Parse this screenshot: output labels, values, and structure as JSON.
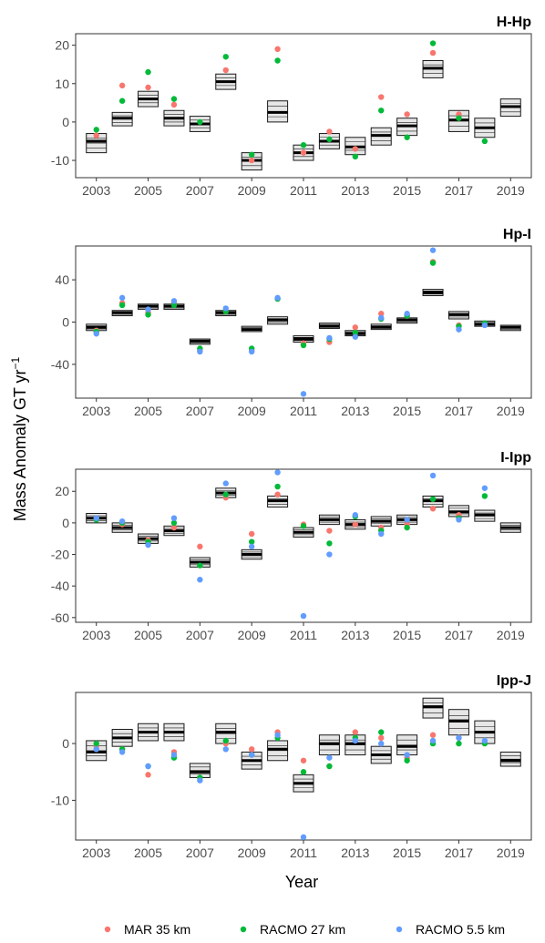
{
  "figure": {
    "ylabel_main": "Mass Anomaly GT yr",
    "ylabel_sup": "−1",
    "xlabel": "Year"
  },
  "colors": {
    "MAR 35 km": "#F8766D",
    "RACMO 27 km": "#00BA38",
    "RACMO 5.5 km": "#619CFF",
    "box_fill": "#e6e6e6",
    "box_stroke": "#1a1a1a"
  },
  "legend": {
    "placement": "bottom",
    "entries": [
      "MAR 35 km",
      "RACMO 27 km",
      "RACMO 5.5 km"
    ]
  },
  "chart_data": [
    {
      "type": "scatter",
      "title": "H-Hp",
      "xlim": [
        2002.2,
        2019.8
      ],
      "ylim": [
        -14.5,
        23
      ],
      "yticks": [
        -10,
        0,
        10,
        20
      ],
      "xticks": [
        2003,
        2005,
        2007,
        2009,
        2011,
        2013,
        2015,
        2017,
        2019
      ],
      "boxes": [
        {
          "x": 2003,
          "lo": -8,
          "hi": -3,
          "mid": -5
        },
        {
          "x": 2004,
          "lo": -1,
          "hi": 2.5,
          "mid": 1
        },
        {
          "x": 2005,
          "lo": 4,
          "hi": 8,
          "mid": 6
        },
        {
          "x": 2006,
          "lo": -1,
          "hi": 3,
          "mid": 1
        },
        {
          "x": 2007,
          "lo": -2.5,
          "hi": 1.5,
          "mid": -0.5
        },
        {
          "x": 2008,
          "lo": 8.5,
          "hi": 12.5,
          "mid": 10.5
        },
        {
          "x": 2009,
          "lo": -12.5,
          "hi": -8,
          "mid": -10
        },
        {
          "x": 2010,
          "lo": 0,
          "hi": 5.5,
          "mid": 2.5
        },
        {
          "x": 2011,
          "lo": -10,
          "hi": -6,
          "mid": -8
        },
        {
          "x": 2012,
          "lo": -7,
          "hi": -3,
          "mid": -5
        },
        {
          "x": 2013,
          "lo": -8.5,
          "hi": -4,
          "mid": -6.5
        },
        {
          "x": 2014,
          "lo": -6,
          "hi": -1.5,
          "mid": -3.5
        },
        {
          "x": 2015,
          "lo": -3.5,
          "hi": 1,
          "mid": -1
        },
        {
          "x": 2016,
          "lo": 11.5,
          "hi": 16,
          "mid": 14
        },
        {
          "x": 2017,
          "lo": -2.5,
          "hi": 3,
          "mid": 0.5
        },
        {
          "x": 2018,
          "lo": -4,
          "hi": 1,
          "mid": -1.5
        },
        {
          "x": 2019,
          "lo": 1.5,
          "hi": 6,
          "mid": 4
        }
      ],
      "series": [
        {
          "name": "MAR 35 km",
          "x": [
            2003,
            2004,
            2005,
            2006,
            2008,
            2009,
            2010,
            2011,
            2012,
            2013,
            2014,
            2015,
            2016,
            2017
          ],
          "y": [
            -3.5,
            9.5,
            9,
            4.5,
            13.5,
            -10,
            19,
            -8,
            -2.5,
            -7,
            6.5,
            2,
            18,
            2
          ]
        },
        {
          "name": "RACMO 27 km",
          "x": [
            2003,
            2004,
            2005,
            2006,
            2007,
            2008,
            2009,
            2010,
            2011,
            2012,
            2013,
            2014,
            2015,
            2016,
            2017,
            2018
          ],
          "y": [
            -2,
            5.5,
            13,
            6,
            0,
            17,
            -8.5,
            16,
            -6,
            -4.5,
            -9,
            3,
            -4,
            20.5,
            1,
            -5
          ]
        }
      ]
    },
    {
      "type": "scatter",
      "title": "Hp-I",
      "xlim": [
        2002.2,
        2019.8
      ],
      "ylim": [
        -72,
        72
      ],
      "yticks": [
        -40,
        0,
        40
      ],
      "xticks": [
        2003,
        2005,
        2007,
        2009,
        2011,
        2013,
        2015,
        2017,
        2019
      ],
      "boxes": [
        {
          "x": 2003,
          "lo": -8,
          "hi": -2,
          "mid": -5
        },
        {
          "x": 2004,
          "lo": 6,
          "hi": 11,
          "mid": 9
        },
        {
          "x": 2005,
          "lo": 12,
          "hi": 17,
          "mid": 15
        },
        {
          "x": 2006,
          "lo": 12,
          "hi": 17,
          "mid": 15
        },
        {
          "x": 2007,
          "lo": -21,
          "hi": -16,
          "mid": -18
        },
        {
          "x": 2008,
          "lo": 6,
          "hi": 11,
          "mid": 9
        },
        {
          "x": 2009,
          "lo": -9,
          "hi": -4,
          "mid": -7
        },
        {
          "x": 2010,
          "lo": -2,
          "hi": 5,
          "mid": 2
        },
        {
          "x": 2011,
          "lo": -19,
          "hi": -13,
          "mid": -16
        },
        {
          "x": 2012,
          "lo": -6,
          "hi": -1,
          "mid": -4
        },
        {
          "x": 2013,
          "lo": -13,
          "hi": -8,
          "mid": -11
        },
        {
          "x": 2014,
          "lo": -7,
          "hi": -2,
          "mid": -5
        },
        {
          "x": 2015,
          "lo": -1,
          "hi": 4,
          "mid": 2
        },
        {
          "x": 2016,
          "lo": 25,
          "hi": 31,
          "mid": 28
        },
        {
          "x": 2017,
          "lo": 3,
          "hi": 10,
          "mid": 7
        },
        {
          "x": 2018,
          "lo": -4,
          "hi": 1,
          "mid": -2
        },
        {
          "x": 2019,
          "lo": -8,
          "hi": -3,
          "mid": -5
        }
      ],
      "series": [
        {
          "name": "MAR 35 km",
          "x": [
            2003,
            2004,
            2005,
            2006,
            2007,
            2008,
            2009,
            2010,
            2011,
            2012,
            2013,
            2014,
            2015,
            2016,
            2017
          ],
          "y": [
            -8,
            18,
            9,
            18,
            -27,
            10,
            -27,
            22,
            -20,
            -19,
            -5,
            8,
            6,
            57,
            -3
          ]
        },
        {
          "name": "RACMO 27 km",
          "x": [
            2003,
            2004,
            2005,
            2006,
            2007,
            2008,
            2009,
            2010,
            2011,
            2012,
            2013,
            2014,
            2015,
            2016,
            2017,
            2018
          ],
          "y": [
            -9,
            16,
            7,
            16,
            -25,
            10,
            -25,
            22,
            -22,
            -16,
            -10,
            3,
            6,
            56,
            -4,
            -1
          ]
        },
        {
          "name": "RACMO 5.5 km",
          "x": [
            2003,
            2004,
            2005,
            2006,
            2007,
            2008,
            2009,
            2010,
            2011,
            2012,
            2013,
            2014,
            2015,
            2016,
            2017,
            2018
          ],
          "y": [
            -11,
            23,
            12,
            20,
            -28,
            13,
            -28,
            23,
            -68,
            -15,
            -14,
            4,
            8,
            68,
            -7,
            -3
          ]
        }
      ]
    },
    {
      "type": "scatter",
      "title": "I-Ipp",
      "xlim": [
        2002.2,
        2019.8
      ],
      "ylim": [
        -63,
        34
      ],
      "yticks": [
        -60,
        -40,
        -20,
        0,
        20
      ],
      "xticks": [
        2003,
        2005,
        2007,
        2009,
        2011,
        2013,
        2015,
        2017,
        2019
      ],
      "boxes": [
        {
          "x": 2003,
          "lo": 0,
          "hi": 6,
          "mid": 3
        },
        {
          "x": 2004,
          "lo": -6,
          "hi": 0,
          "mid": -3
        },
        {
          "x": 2005,
          "lo": -13,
          "hi": -7,
          "mid": -10
        },
        {
          "x": 2006,
          "lo": -8,
          "hi": -2,
          "mid": -5
        },
        {
          "x": 2007,
          "lo": -28,
          "hi": -22,
          "mid": -25
        },
        {
          "x": 2008,
          "lo": 16,
          "hi": 22,
          "mid": 19
        },
        {
          "x": 2009,
          "lo": -23,
          "hi": -17,
          "mid": -20
        },
        {
          "x": 2010,
          "lo": 10,
          "hi": 17,
          "mid": 14
        },
        {
          "x": 2011,
          "lo": -9,
          "hi": -3,
          "mid": -6
        },
        {
          "x": 2012,
          "lo": -1,
          "hi": 5,
          "mid": 2
        },
        {
          "x": 2013,
          "lo": -4,
          "hi": 2,
          "mid": -1
        },
        {
          "x": 2014,
          "lo": -2,
          "hi": 4,
          "mid": 1
        },
        {
          "x": 2015,
          "lo": -1,
          "hi": 5,
          "mid": 2
        },
        {
          "x": 2016,
          "lo": 10,
          "hi": 17,
          "mid": 14
        },
        {
          "x": 2017,
          "lo": 4,
          "hi": 11,
          "mid": 7
        },
        {
          "x": 2018,
          "lo": 1,
          "hi": 8,
          "mid": 5
        },
        {
          "x": 2019,
          "lo": -6,
          "hi": 0,
          "mid": -3
        }
      ],
      "series": [
        {
          "name": "MAR 35 km",
          "x": [
            2003,
            2004,
            2005,
            2006,
            2007,
            2008,
            2009,
            2010,
            2011,
            2012,
            2013,
            2014,
            2015,
            2016,
            2017
          ],
          "y": [
            2,
            -1,
            -11,
            -3,
            -15,
            16,
            -7,
            18,
            -1,
            -5,
            -1,
            -3,
            -1,
            9,
            5
          ]
        },
        {
          "name": "RACMO 27 km",
          "x": [
            2003,
            2004,
            2005,
            2006,
            2007,
            2008,
            2009,
            2010,
            2011,
            2012,
            2013,
            2014,
            2015,
            2016,
            2017,
            2018
          ],
          "y": [
            2,
            0,
            -12,
            0,
            -27,
            18,
            -12,
            23,
            -2,
            -13,
            4,
            -5,
            -3,
            15,
            3,
            17
          ]
        },
        {
          "name": "RACMO 5.5 km",
          "x": [
            2003,
            2004,
            2005,
            2006,
            2007,
            2008,
            2009,
            2010,
            2011,
            2012,
            2013,
            2014,
            2015,
            2016,
            2017,
            2018
          ],
          "y": [
            3,
            1,
            -14,
            3,
            -36,
            25,
            -15,
            32,
            -59,
            -20,
            5,
            -7,
            2,
            30,
            2,
            22
          ]
        }
      ]
    },
    {
      "type": "scatter",
      "title": "Ipp-J",
      "xlim": [
        2002.2,
        2019.8
      ],
      "ylim": [
        -17,
        9
      ],
      "yticks": [
        -10,
        0
      ],
      "xticks": [
        2003,
        2005,
        2007,
        2009,
        2011,
        2013,
        2015,
        2017,
        2019
      ],
      "boxes": [
        {
          "x": 2003,
          "lo": -3,
          "hi": 0.5,
          "mid": -1.5
        },
        {
          "x": 2004,
          "lo": -0.5,
          "hi": 2.5,
          "mid": 1
        },
        {
          "x": 2005,
          "lo": 0.5,
          "hi": 3.5,
          "mid": 2
        },
        {
          "x": 2006,
          "lo": 0.5,
          "hi": 3.5,
          "mid": 2
        },
        {
          "x": 2007,
          "lo": -6,
          "hi": -3.5,
          "mid": -5
        },
        {
          "x": 2008,
          "lo": 0,
          "hi": 3.5,
          "mid": 2
        },
        {
          "x": 2009,
          "lo": -4.5,
          "hi": -1.5,
          "mid": -3
        },
        {
          "x": 2010,
          "lo": -3,
          "hi": 0.5,
          "mid": -1
        },
        {
          "x": 2011,
          "lo": -8.5,
          "hi": -5.5,
          "mid": -7
        },
        {
          "x": 2012,
          "lo": -2,
          "hi": 1.5,
          "mid": 0
        },
        {
          "x": 2013,
          "lo": -2,
          "hi": 1.5,
          "mid": 0
        },
        {
          "x": 2014,
          "lo": -3.5,
          "hi": -0.5,
          "mid": -2
        },
        {
          "x": 2015,
          "lo": -2,
          "hi": 1.5,
          "mid": -0.5
        },
        {
          "x": 2016,
          "lo": 4.5,
          "hi": 8,
          "mid": 6.5
        },
        {
          "x": 2017,
          "lo": 1.5,
          "hi": 6,
          "mid": 4
        },
        {
          "x": 2018,
          "lo": 0,
          "hi": 4,
          "mid": 2
        },
        {
          "x": 2019,
          "lo": -4,
          "hi": -1.5,
          "mid": -3
        }
      ],
      "series": [
        {
          "name": "MAR 35 km",
          "x": [
            2003,
            2004,
            2005,
            2006,
            2007,
            2008,
            2009,
            2010,
            2011,
            2012,
            2013,
            2014,
            2015,
            2016,
            2017
          ],
          "y": [
            -0.5,
            -1,
            -5.5,
            -1.5,
            -6,
            0,
            -1,
            2,
            -3,
            -4,
            2,
            1,
            -2.5,
            1.5,
            1
          ]
        },
        {
          "name": "RACMO 27 km",
          "x": [
            2003,
            2004,
            2005,
            2006,
            2007,
            2008,
            2009,
            2010,
            2011,
            2012,
            2013,
            2014,
            2015,
            2016,
            2017,
            2018
          ],
          "y": [
            0,
            -1,
            -4,
            -2.5,
            -6,
            0.5,
            -2,
            1,
            -5,
            -4,
            1,
            2,
            -3,
            0,
            0,
            0
          ]
        },
        {
          "name": "RACMO 5.5 km",
          "x": [
            2003,
            2004,
            2005,
            2006,
            2007,
            2008,
            2009,
            2010,
            2011,
            2012,
            2013,
            2014,
            2015,
            2016,
            2017,
            2018
          ],
          "y": [
            -1,
            -1.5,
            -4,
            -2,
            -6.5,
            -1,
            -2,
            1.5,
            -16.5,
            -2.5,
            0.5,
            0,
            -2,
            0.5,
            1,
            0.5
          ]
        }
      ]
    }
  ]
}
